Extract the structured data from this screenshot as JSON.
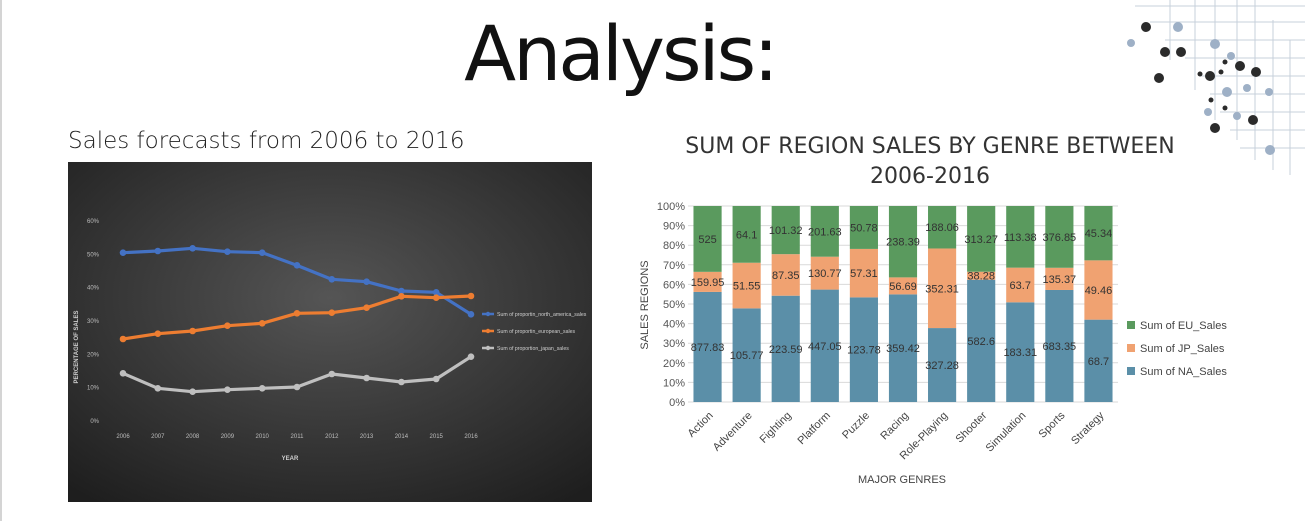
{
  "slide": {
    "title": "Analysis:"
  },
  "left_panel": {
    "caption": "Sales forecasts from 2006 to 2016"
  },
  "right_panel": {
    "title_line1": "SUM OF REGION SALES BY GENRE BETWEEN",
    "title_line2": "2006-2016"
  },
  "colors": {
    "line_na": "#4472c4",
    "line_eu": "#ed7d31",
    "line_jp": "#bfbfbf",
    "bar_eu": "#5a9a5e",
    "bar_jp": "#f0a271",
    "bar_na": "#5b8fa8"
  },
  "chart_data": [
    {
      "type": "line",
      "title": "",
      "xlabel": "YEAR",
      "ylabel": "PERCENTAGE OF SALES",
      "x": [
        "2006",
        "2007",
        "2008",
        "2009",
        "2010",
        "2011",
        "2012",
        "2013",
        "2014",
        "2015",
        "2016"
      ],
      "y_ticks": [
        "0%",
        "10%",
        "20%",
        "30%",
        "40%",
        "50%",
        "60%"
      ],
      "ylim": [
        0,
        60
      ],
      "grid": false,
      "legend_position": "right",
      "series": [
        {
          "name": "Sum of proportin_north_america_sales",
          "values": [
            50.5,
            51,
            51.8,
            50.8,
            50.5,
            46.7,
            42.5,
            41.8,
            39,
            38.6,
            32
          ]
        },
        {
          "name": "Sum of proportin_european_sales",
          "values": [
            24.6,
            26.2,
            27,
            28.6,
            29.3,
            32.3,
            32.5,
            34,
            37.4,
            37,
            37.5
          ]
        },
        {
          "name": "Sum of proportion_japan_sales",
          "values": [
            14.3,
            9.8,
            8.8,
            9.4,
            9.8,
            10.2,
            14.1,
            12.9,
            11.7,
            12.6,
            19.3
          ]
        }
      ]
    },
    {
      "type": "bar",
      "stacked": "percent",
      "title": "SUM OF REGION SALES BY GENRE BETWEEN 2006-2016",
      "xlabel": "MAJOR GENRES",
      "ylabel": "SALES REGIONS",
      "y_ticks": [
        "0%",
        "10%",
        "20%",
        "30%",
        "40%",
        "50%",
        "60%",
        "70%",
        "80%",
        "90%",
        "100%"
      ],
      "ylim": [
        0,
        100
      ],
      "grid": true,
      "legend_position": "right",
      "categories": [
        "Action",
        "Adventure",
        "Fighting",
        "Platform",
        "Puzzle",
        "Racing",
        "Role-Playing",
        "Shooter",
        "Simulation",
        "Sports",
        "Strategy"
      ],
      "series": [
        {
          "name": "Sum of NA_Sales",
          "values": [
            877.83,
            105.77,
            223.59,
            447.05,
            123.78,
            359.42,
            327.28,
            582.6,
            183.31,
            683.35,
            68.7
          ],
          "labels": [
            "877.83",
            "105.77",
            "223.59",
            "447.05",
            "123.78",
            "359.42",
            "327.28",
            "582.6",
            "183.31",
            "683.35",
            "68.7"
          ]
        },
        {
          "name": "Sum of JP_Sales",
          "values": [
            159.95,
            51.55,
            87.35,
            130.77,
            57.31,
            56.69,
            352.31,
            38.28,
            63.7,
            135.37,
            49.46
          ],
          "labels": [
            "159.95",
            "51.55",
            "87.35",
            "130.77",
            "57.31",
            "56.69",
            "352.31",
            "38.28",
            "63.7",
            "135.37",
            "49.46"
          ]
        },
        {
          "name": "Sum of EU_Sales",
          "values": [
            525,
            64.1,
            101.32,
            201.63,
            50.78,
            238.39,
            188.06,
            313.27,
            113.38,
            376.85,
            45.34
          ],
          "labels": [
            "525",
            "64.1",
            "101.32",
            "201.63",
            "50.78",
            "238.39",
            "188.06",
            "313.27",
            "113.38",
            "376.85",
            "45.34"
          ]
        }
      ]
    }
  ]
}
